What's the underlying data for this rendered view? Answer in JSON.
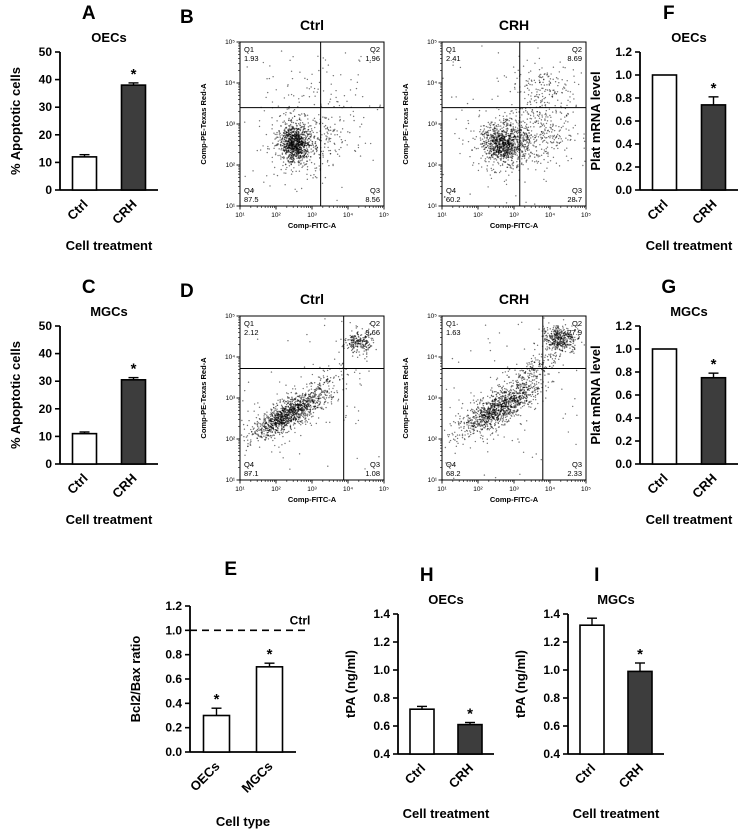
{
  "figure": {
    "background": "#ffffff",
    "bar_fill_ctrl": "#ffffff",
    "bar_fill_treated": "#3d3d3d",
    "axis_color": "#000000"
  },
  "chart_data": [
    {
      "panel": "A",
      "type": "bar",
      "title": "OECs",
      "ylabel": "% Apoptotic cells",
      "xlabel": "Cell treatment",
      "categories": [
        "Ctrl",
        "CRH"
      ],
      "values": [
        12,
        38
      ],
      "errors": [
        0.8,
        0.8
      ],
      "sig": [
        "",
        "*"
      ],
      "bar_colors": [
        "#ffffff",
        "#3d3d3d"
      ],
      "ylim": [
        0,
        50
      ],
      "yticks": [
        "0",
        "10",
        "20",
        "30",
        "40",
        "50"
      ]
    },
    {
      "panel": "B",
      "type": "scatter-flow",
      "xlabel": "Comp-FITC-A",
      "ylabel": "Comp-PE-Texas Red-A",
      "xticks": [
        "10¹",
        "10²",
        "10³",
        "10⁴",
        "10⁵"
      ],
      "yticks": [
        "10¹",
        "10²",
        "10³",
        "10⁴",
        "10⁵"
      ],
      "plots": [
        {
          "title": "Ctrl",
          "gate": {
            "x": 0.56,
            "y": 0.4
          },
          "quadrants": [
            {
              "q": "Q1",
              "v": "1.93"
            },
            {
              "q": "Q2",
              "v": "1.96"
            },
            {
              "q": "Q3",
              "v": "8.56"
            },
            {
              "q": "Q4",
              "v": "87.5"
            }
          ],
          "clusters": [
            {
              "cx": 0.38,
              "cy": 0.62,
              "sx": 0.05,
              "sy": 0.055,
              "n": 850
            },
            {
              "cx": 0.39,
              "cy": 0.62,
              "sx": 0.11,
              "sy": 0.11,
              "n": 220
            },
            {
              "cx": 0.6,
              "cy": 0.6,
              "sx": 0.13,
              "sy": 0.08,
              "n": 120
            },
            {
              "cx": 0.5,
              "cy": 0.33,
              "sx": 0.16,
              "sy": 0.1,
              "n": 70
            },
            {
              "uniform": true,
              "n": 60
            }
          ]
        },
        {
          "title": "CRH",
          "gate": {
            "x": 0.54,
            "y": 0.4
          },
          "quadrants": [
            {
              "q": "Q1",
              "v": "2.41"
            },
            {
              "q": "Q2",
              "v": "8.69"
            },
            {
              "q": "Q3",
              "v": "28.7"
            },
            {
              "q": "Q4",
              "v": "60.2"
            }
          ],
          "clusters": [
            {
              "cx": 0.43,
              "cy": 0.62,
              "sx": 0.07,
              "sy": 0.06,
              "n": 800
            },
            {
              "cx": 0.45,
              "cy": 0.6,
              "sx": 0.14,
              "sy": 0.11,
              "n": 260
            },
            {
              "cx": 0.68,
              "cy": 0.56,
              "sx": 0.12,
              "sy": 0.09,
              "n": 280
            },
            {
              "cx": 0.72,
              "cy": 0.28,
              "sx": 0.12,
              "sy": 0.08,
              "n": 160
            },
            {
              "uniform": true,
              "n": 60
            }
          ]
        }
      ]
    },
    {
      "panel": "C",
      "type": "bar",
      "title": "MGCs",
      "ylabel": "% Apoptotic cells",
      "xlabel": "Cell treatment",
      "categories": [
        "Ctrl",
        "CRH"
      ],
      "values": [
        11,
        30.5
      ],
      "errors": [
        0.6,
        0.8
      ],
      "sig": [
        "",
        "*"
      ],
      "bar_colors": [
        "#ffffff",
        "#3d3d3d"
      ],
      "ylim": [
        0,
        50
      ],
      "yticks": [
        "0",
        "10",
        "20",
        "30",
        "40",
        "50"
      ]
    },
    {
      "panel": "D",
      "type": "scatter-flow",
      "xlabel": "Comp-FITC-A",
      "ylabel": "Comp-PE-Texas Red-A",
      "xticks": [
        "10¹",
        "10²",
        "10³",
        "10⁴",
        "10⁵"
      ],
      "yticks": [
        "10¹",
        "10²",
        "10³",
        "10⁴",
        "10⁵"
      ],
      "plots": [
        {
          "title": "Ctrl",
          "gate": {
            "x": 0.72,
            "y": 0.32
          },
          "quadrants": [
            {
              "q": "Q1",
              "v": "2.12"
            },
            {
              "q": "Q2",
              "v": "9.66"
            },
            {
              "q": "Q3",
              "v": "1.08"
            },
            {
              "q": "Q4",
              "v": "87.1"
            }
          ],
          "clusters": [
            {
              "cx": 0.34,
              "cy": 0.6,
              "sx": 0.12,
              "sy": 0.04,
              "slope": 0.45,
              "n": 1000
            },
            {
              "cx": 0.34,
              "cy": 0.6,
              "sx": 0.17,
              "sy": 0.08,
              "slope": 0.45,
              "n": 220
            },
            {
              "cx": 0.83,
              "cy": 0.16,
              "sx": 0.05,
              "sy": 0.035,
              "n": 220
            },
            {
              "cx": 0.6,
              "cy": 0.4,
              "sx": 0.09,
              "sy": 0.05,
              "slope": 0.45,
              "n": 90
            },
            {
              "uniform": true,
              "n": 50
            }
          ]
        },
        {
          "title": "CRH",
          "gate": {
            "x": 0.7,
            "y": 0.32
          },
          "quadrants": [
            {
              "q": "Q1",
              "v": "1.63"
            },
            {
              "q": "Q2",
              "v": "27.9"
            },
            {
              "q": "Q3",
              "v": "2.33"
            },
            {
              "q": "Q4",
              "v": "68.2"
            }
          ],
          "clusters": [
            {
              "cx": 0.4,
              "cy": 0.56,
              "sx": 0.13,
              "sy": 0.045,
              "slope": 0.45,
              "n": 950
            },
            {
              "cx": 0.4,
              "cy": 0.56,
              "sx": 0.18,
              "sy": 0.09,
              "slope": 0.45,
              "n": 220
            },
            {
              "cx": 0.82,
              "cy": 0.14,
              "sx": 0.06,
              "sy": 0.04,
              "n": 420
            },
            {
              "cx": 0.64,
              "cy": 0.33,
              "sx": 0.09,
              "sy": 0.05,
              "slope": 0.45,
              "n": 150
            },
            {
              "uniform": true,
              "n": 50
            }
          ]
        }
      ]
    },
    {
      "panel": "E",
      "type": "bar",
      "title": "",
      "ylabel": "Bcl2/Bax ratio",
      "xlabel": "Cell type",
      "categories": [
        "OECs",
        "MGCs"
      ],
      "values": [
        0.3,
        0.7
      ],
      "errors": [
        0.06,
        0.03
      ],
      "sig": [
        "*",
        "*"
      ],
      "bar_colors": [
        "#ffffff",
        "#ffffff"
      ],
      "ylim": [
        0,
        1.2
      ],
      "yticks": [
        "0.0",
        "0.2",
        "0.4",
        "0.6",
        "0.8",
        "1.0",
        "1.2"
      ],
      "ref_line": {
        "value": 1.0,
        "label": "Ctrl"
      }
    },
    {
      "panel": "F",
      "type": "bar",
      "title": "OECs",
      "ylabel": "Plat mRNA level",
      "xlabel": "Cell treatment",
      "categories": [
        "Ctrl",
        "CRH"
      ],
      "values": [
        1.0,
        0.74
      ],
      "errors": [
        0,
        0.07
      ],
      "sig": [
        "",
        "*"
      ],
      "bar_colors": [
        "#ffffff",
        "#3d3d3d"
      ],
      "ylim": [
        0,
        1.2
      ],
      "yticks": [
        "0.0",
        "0.2",
        "0.4",
        "0.6",
        "0.8",
        "1.0",
        "1.2"
      ]
    },
    {
      "panel": "G",
      "type": "bar",
      "title": "MGCs",
      "ylabel": "Plat mRNA level",
      "xlabel": "Cell treatment",
      "categories": [
        "Ctrl",
        "CRH"
      ],
      "values": [
        1.0,
        0.75
      ],
      "errors": [
        0,
        0.04
      ],
      "sig": [
        "",
        "*"
      ],
      "bar_colors": [
        "#ffffff",
        "#3d3d3d"
      ],
      "ylim": [
        0,
        1.2
      ],
      "yticks": [
        "0.0",
        "0.2",
        "0.4",
        "0.6",
        "0.8",
        "1.0",
        "1.2"
      ]
    },
    {
      "panel": "H",
      "type": "bar",
      "title": "OECs",
      "ylabel": "tPA (ng/ml)",
      "xlabel": "Cell treatment",
      "categories": [
        "Ctrl",
        "CRH"
      ],
      "values": [
        0.72,
        0.61
      ],
      "errors": [
        0.02,
        0.015
      ],
      "sig": [
        "",
        "*"
      ],
      "bar_colors": [
        "#ffffff",
        "#3d3d3d"
      ],
      "ylim": [
        0.4,
        1.4
      ],
      "yticks": [
        "0.4",
        "0.6",
        "0.8",
        "1.0",
        "1.2",
        "1.4"
      ]
    },
    {
      "panel": "I",
      "type": "bar",
      "title": "MGCs",
      "ylabel": "tPA (ng/ml)",
      "xlabel": "Cell treatment",
      "categories": [
        "Ctrl",
        "CRH"
      ],
      "values": [
        1.32,
        0.99
      ],
      "errors": [
        0.05,
        0.06
      ],
      "sig": [
        "",
        "*"
      ],
      "bar_colors": [
        "#ffffff",
        "#3d3d3d"
      ],
      "ylim": [
        0.4,
        1.4
      ],
      "yticks": [
        "0.4",
        "0.6",
        "0.8",
        "1.0",
        "1.2",
        "1.4"
      ]
    }
  ]
}
